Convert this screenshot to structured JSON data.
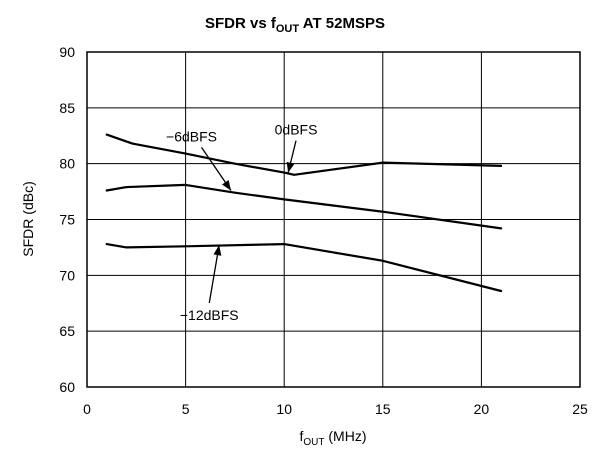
{
  "chart_data": {
    "type": "line",
    "title": {
      "prefix": "SFDR vs f",
      "subscript": "OUT",
      "suffix": " AT 52MSPS"
    },
    "xlabel": {
      "prefix": "f",
      "subscript": "OUT",
      "suffix": " (MHz)"
    },
    "ylabel": "SFDR (dBc)",
    "xlim": [
      0,
      25
    ],
    "ylim": [
      60,
      90
    ],
    "xticks": [
      0,
      5,
      10,
      15,
      20,
      25
    ],
    "yticks": [
      60,
      65,
      70,
      75,
      80,
      85,
      90
    ],
    "grid": true,
    "series": [
      {
        "name": "0dBFS",
        "x": [
          1,
          2.3,
          5,
          7.5,
          10,
          10.5,
          15,
          21
        ],
        "y": [
          82.6,
          81.8,
          80.9,
          80.0,
          79.2,
          79.0,
          80.1,
          79.8
        ]
      },
      {
        "name": "-6dBFS",
        "x": [
          1,
          2,
          5,
          7.5,
          10,
          15,
          21
        ],
        "y": [
          77.6,
          77.9,
          78.1,
          77.4,
          76.8,
          75.7,
          74.2
        ]
      },
      {
        "name": "-12dBFS",
        "x": [
          1,
          2,
          5,
          10,
          15,
          21
        ],
        "y": [
          72.8,
          72.5,
          72.6,
          72.8,
          71.3,
          68.6
        ]
      }
    ],
    "annotations": [
      {
        "label": "0dBFS",
        "text_at": [
          10.6,
          82.6
        ],
        "arrow_to": [
          10.2,
          79.2
        ]
      },
      {
        "label": "−6dBFS",
        "text_at": [
          5.3,
          82.0
        ],
        "arrow_to": [
          7.3,
          77.6
        ]
      },
      {
        "label": "−12dBFS",
        "text_at": [
          6.2,
          66.0
        ],
        "arrow_to": [
          6.7,
          72.7
        ]
      }
    ]
  }
}
